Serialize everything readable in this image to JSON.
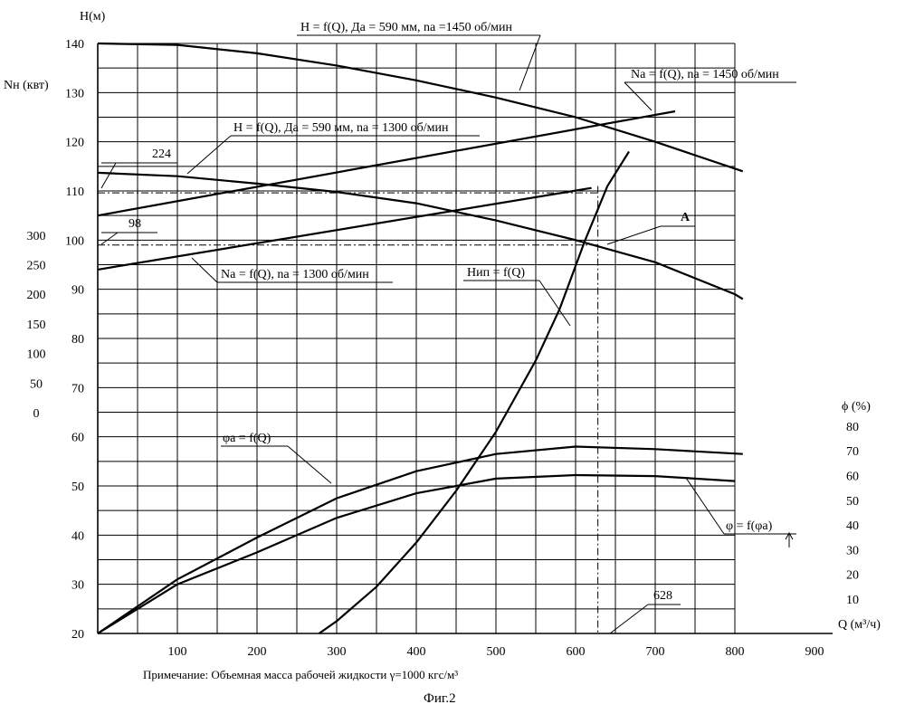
{
  "chart_data": {
    "type": "line",
    "xlabel": "Q (м³/ч)",
    "ylabel_H": "Н(м)",
    "ylabel_N": "Nн (квт)",
    "ylabel_phi": "ϕ (%)",
    "x_range": [
      0,
      900
    ],
    "H_range": [
      20,
      140
    ],
    "x_ticks": [
      100,
      200,
      300,
      400,
      500,
      600,
      700,
      800,
      900
    ],
    "H_ticks": [
      20,
      30,
      40,
      50,
      60,
      70,
      80,
      90,
      100,
      110,
      120,
      130,
      140
    ],
    "N_ticks": [
      0,
      50,
      100,
      150,
      200,
      250,
      300
    ],
    "phi_ticks": [
      10,
      20,
      30,
      40,
      50,
      60,
      70,
      80
    ],
    "grid": true,
    "series": [
      {
        "name": "H = f(Q), Дa = 590 мм, na =1450 об/мин",
        "axis": "H",
        "x": [
          0,
          100,
          200,
          300,
          400,
          500,
          600,
          700,
          810
        ],
        "y": [
          140,
          139.7,
          138,
          135.5,
          132.5,
          129,
          125,
          120,
          114
        ]
      },
      {
        "name": "H = f(Q), Дa = 590 мм, na = 1300 об/мин",
        "axis": "H",
        "x": [
          0,
          100,
          200,
          300,
          400,
          500,
          600,
          700,
          800,
          810
        ],
        "y": [
          113.7,
          113,
          111.5,
          109.8,
          107.5,
          104,
          100,
          95.5,
          89,
          88
        ]
      },
      {
        "name": "Na = f(Q), na = 1450 об/мин",
        "axis": "H",
        "x": [
          0,
          725
        ],
        "y": [
          105,
          126.2
        ]
      },
      {
        "name": "Na = f(Q), na = 1300 об/мин",
        "axis": "H",
        "x": [
          0,
          620
        ],
        "y": [
          94,
          110.6
        ]
      },
      {
        "name": "Нип = f(Q)",
        "axis": "H",
        "x": [
          278,
          300,
          350,
          400,
          450,
          500,
          550,
          580,
          612,
          640,
          667
        ],
        "y": [
          20,
          22.5,
          29.5,
          38.5,
          49,
          61,
          75.5,
          86,
          100,
          111,
          118
        ]
      },
      {
        "name": "φa = f(Q)",
        "axis": "H",
        "x": [
          0,
          100,
          200,
          300,
          400,
          500,
          600,
          700,
          810
        ],
        "y": [
          20,
          31,
          39.5,
          47.5,
          53,
          56.5,
          58,
          57.5,
          56.5
        ]
      },
      {
        "name": "φ = f(φa)",
        "axis": "H",
        "x": [
          0,
          100,
          200,
          300,
          400,
          500,
          600,
          700,
          800
        ],
        "y": [
          20,
          30,
          36.5,
          43.5,
          48.5,
          51.5,
          52.2,
          52,
          51
        ]
      }
    ],
    "annotations": [
      {
        "text": "224",
        "H_level": 109.6
      },
      {
        "text": "98",
        "H_level": 99
      },
      {
        "text": "628",
        "x": 628
      },
      {
        "text": "A",
        "x": 612,
        "y": 99
      }
    ]
  },
  "footer": {
    "note": "Примечание:  Объемная масса рабочей жидкости γ=1000 кгс/м³",
    "figure": "Фиг.2"
  }
}
